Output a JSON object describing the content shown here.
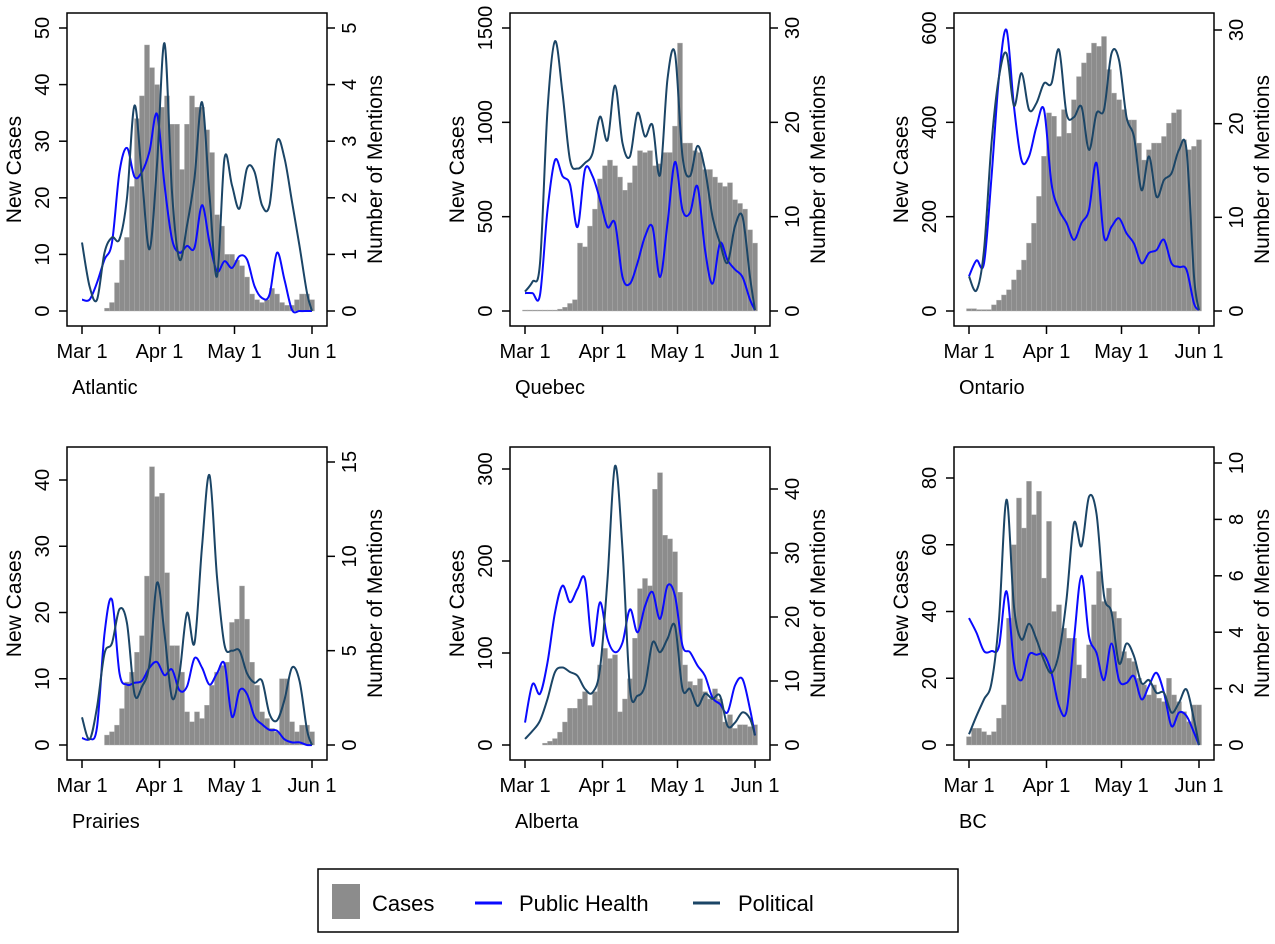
{
  "chart_data": {
    "type": "bar+line",
    "x_ticks": [
      "Mar 1",
      "Apr 1",
      "May 1",
      "Jun 1"
    ],
    "xlim": [
      "Mar 1",
      "Jun 1"
    ],
    "left_axis_label": "New Cases",
    "right_axis_label": "Number of Mentions",
    "grid": false,
    "legend": {
      "placement": "bottom",
      "entries": [
        "Cases",
        "Public Health",
        "Political"
      ]
    },
    "colors": {
      "cases": "#8c8c8c",
      "public_health": "#0a0aff",
      "political": "#1b4566"
    },
    "case_dates": [
      "Mar 1",
      "Mar 3",
      "Mar 5",
      "Mar 7",
      "Mar 9",
      "Mar 11",
      "Mar 13",
      "Mar 15",
      "Mar 17",
      "Mar 19",
      "Mar 21",
      "Mar 23",
      "Mar 25",
      "Mar 27",
      "Mar 29",
      "Mar 31",
      "Apr 2",
      "Apr 4",
      "Apr 6",
      "Apr 8",
      "Apr 10",
      "Apr 12",
      "Apr 14",
      "Apr 16",
      "Apr 18",
      "Apr 20",
      "Apr 22",
      "Apr 24",
      "Apr 26",
      "Apr 28",
      "Apr 30",
      "May 2",
      "May 4",
      "May 6",
      "May 8",
      "May 10",
      "May 12",
      "May 14",
      "May 16",
      "May 18",
      "May 20",
      "May 22",
      "May 24",
      "May 26",
      "May 28",
      "May 30",
      "Jun 1"
    ],
    "mention_dates": [
      "Mar 1",
      "Mar 4",
      "Mar 7",
      "Mar 10",
      "Mar 13",
      "Mar 16",
      "Mar 19",
      "Mar 22",
      "Mar 25",
      "Mar 28",
      "Mar 31",
      "Apr 3",
      "Apr 6",
      "Apr 9",
      "Apr 12",
      "Apr 15",
      "Apr 18",
      "Apr 21",
      "Apr 24",
      "Apr 27",
      "Apr 30",
      "May 3",
      "May 6",
      "May 9",
      "May 12",
      "May 15",
      "May 18",
      "May 21",
      "May 24",
      "May 27",
      "May 30",
      "Jun 1"
    ],
    "panels": [
      {
        "region": "Atlantic",
        "left_ticks": [
          0,
          10,
          20,
          30,
          40,
          50
        ],
        "left_ylim": [
          0,
          50
        ],
        "right_ticks": [
          0,
          1,
          2,
          3,
          4,
          5
        ],
        "right_ylim": [
          0,
          5
        ],
        "cases": [
          0,
          0,
          0,
          0,
          0,
          0.5,
          1.5,
          5,
          9,
          13,
          22,
          34,
          38,
          47,
          43,
          40,
          36,
          38,
          33,
          33,
          25,
          33,
          38,
          36,
          36,
          32,
          28,
          17,
          15,
          10,
          10,
          9,
          8,
          6,
          3,
          2,
          1.5,
          2,
          4,
          3,
          1.5,
          1,
          1,
          2,
          3,
          3,
          2
        ],
        "public_health": [
          0.2,
          0.2,
          0.5,
          0.91,
          1.21,
          2.46,
          2.88,
          2.37,
          2.46,
          2.82,
          3.48,
          2.23,
          1.27,
          1.03,
          1.15,
          1.12,
          1.87,
          1.21,
          0.7,
          0.88,
          0.76,
          0.97,
          0.91,
          0.44,
          0.23,
          0.29,
          1.03,
          0.55,
          0.02,
          0,
          0,
          0
        ],
        "political": [
          1.21,
          0.44,
          0.2,
          1.03,
          1.3,
          1.27,
          2.0,
          3.63,
          2.35,
          1.09,
          2.58,
          4.73,
          2.1,
          0.91,
          1.51,
          2.35,
          3.69,
          2.05,
          0.61,
          2.7,
          2.22,
          1.81,
          2.52,
          2.46,
          1.87,
          1.87,
          3.0,
          2.7,
          1.93,
          1.15,
          0.32,
          0
        ]
      },
      {
        "region": "Quebec",
        "left_ticks": [
          0,
          500,
          1000,
          1500
        ],
        "left_ylim": [
          0,
          1500
        ],
        "right_ticks": [
          0,
          10,
          20,
          30
        ],
        "right_ylim": [
          0,
          30
        ],
        "cases": [
          5,
          5,
          5,
          5,
          5,
          5,
          5,
          10,
          20,
          40,
          60,
          360,
          340,
          450,
          540,
          700,
          770,
          800,
          770,
          710,
          640,
          680,
          770,
          850,
          840,
          850,
          770,
          780,
          840,
          840,
          980,
          1420,
          890,
          890,
          850,
          840,
          750,
          750,
          710,
          680,
          660,
          680,
          590,
          570,
          540,
          430,
          360
        ],
        "public_health": [
          1.9,
          1.9,
          1.7,
          10.7,
          16,
          14.3,
          13.4,
          8.9,
          15,
          14.3,
          11.8,
          8.9,
          9.3,
          3.6,
          2.9,
          5.1,
          7.9,
          8.9,
          3.6,
          9.3,
          15.8,
          10.7,
          10.4,
          13.2,
          6.5,
          2.9,
          7.2,
          5.4,
          4.4,
          3.6,
          1.2,
          0.1
        ],
        "political": [
          2.05,
          3.1,
          5.06,
          21.3,
          28.6,
          23.1,
          16.0,
          15.1,
          15.7,
          16.7,
          20.6,
          18.1,
          23.9,
          17.8,
          16.4,
          21.0,
          18.5,
          19.7,
          14.4,
          24.6,
          27.3,
          16.4,
          14.3,
          17.5,
          15.0,
          10.0,
          7.2,
          5.1,
          9.0,
          10.0,
          3.6,
          0.1
        ]
      },
      {
        "region": "Ontario",
        "left_ticks": [
          0,
          200,
          400,
          600
        ],
        "left_ylim": [
          0,
          600
        ],
        "right_ticks": [
          0,
          10,
          20,
          30
        ],
        "right_ylim": [
          0,
          30
        ],
        "cases": [
          5,
          5,
          3,
          3,
          3,
          13,
          23,
          34,
          45,
          66,
          87,
          108,
          144,
          186,
          243,
          328,
          420,
          413,
          370,
          427,
          377,
          448,
          497,
          526,
          547,
          568,
          561,
          582,
          512,
          462,
          448,
          427,
          405,
          405,
          356,
          320,
          342,
          356,
          356,
          370,
          398,
          420,
          427,
          363,
          342,
          349,
          363
        ],
        "public_health": [
          3.7,
          5.4,
          5.1,
          14.3,
          25.0,
          30,
          21.8,
          16.1,
          16.5,
          19.7,
          21.5,
          13.6,
          10.8,
          9.4,
          7.6,
          9.4,
          10.8,
          15.8,
          7.9,
          9.0,
          9.9,
          8.3,
          7.2,
          5.1,
          6.2,
          6.5,
          7.6,
          5.1,
          4.7,
          4.4,
          0.8,
          0.1
        ],
        "political": [
          3.7,
          2.2,
          6.5,
          17.9,
          25.0,
          27.5,
          21.9,
          25.4,
          21.5,
          22.2,
          24.3,
          24.3,
          27.9,
          21.1,
          20.7,
          21.8,
          17.2,
          21.1,
          21.5,
          27.5,
          26.8,
          20.7,
          18.6,
          12.9,
          16.5,
          12.2,
          14.0,
          14.7,
          17.2,
          17.2,
          3.7,
          0.1
        ]
      },
      {
        "region": "Prairies",
        "left_ticks": [
          0,
          10,
          20,
          30,
          40
        ],
        "left_ylim": [
          0,
          40
        ],
        "right_ticks": [
          0,
          5,
          10,
          15
        ],
        "right_ylim": [
          0,
          15
        ],
        "cases": [
          0,
          0,
          0,
          0,
          0,
          1.5,
          2,
          3,
          5.5,
          9.5,
          11,
          14,
          16.5,
          25.5,
          42,
          37.5,
          38,
          26,
          15,
          15,
          11,
          5,
          3.5,
          5,
          4,
          6,
          9,
          11,
          12,
          12.5,
          18.5,
          19,
          24,
          19,
          12.5,
          9,
          5,
          4,
          2.5,
          2,
          10,
          10,
          3.5,
          2,
          3,
          3,
          2
        ],
        "public_health": [
          0.37,
          0.3,
          0.94,
          5.9,
          7.7,
          3.8,
          3.2,
          3.3,
          3.4,
          4.1,
          4.4,
          3.7,
          4.0,
          2.9,
          3.1,
          4.6,
          4.1,
          3.2,
          3.8,
          4.3,
          1.5,
          2.9,
          2.7,
          1.5,
          1.1,
          0.8,
          0.76,
          0.3,
          0.14,
          0.14,
          0,
          0
        ],
        "political": [
          1.47,
          0.3,
          2.0,
          4.85,
          5.4,
          7.2,
          6.45,
          2.7,
          3.1,
          4.3,
          8.6,
          5.9,
          2.5,
          3.8,
          7.0,
          5.4,
          10.5,
          14.3,
          8.9,
          5.3,
          5.0,
          5.0,
          3.8,
          3.3,
          3.4,
          1.65,
          1.3,
          2.4,
          4.1,
          3.4,
          0.8,
          0
        ]
      },
      {
        "region": "Alberta",
        "left_ticks": [
          0,
          100,
          200,
          300
        ],
        "left_ylim": [
          0,
          300
        ],
        "right_ticks": [
          0,
          10,
          20,
          30,
          40
        ],
        "right_ylim": [
          0,
          40
        ],
        "cases": [
          0,
          0,
          0,
          0,
          2,
          4,
          7,
          14,
          25,
          40,
          40,
          50,
          58,
          43,
          58,
          87,
          105,
          94,
          98,
          36,
          50,
          72,
          116,
          170,
          181,
          173,
          278,
          296,
          228,
          224,
          210,
          166,
          87,
          69,
          65,
          72,
          58,
          50,
          61,
          50,
          25,
          33,
          18,
          22,
          22,
          20,
          22
        ],
        "public_health": [
          3.5,
          9.5,
          8.0,
          12.9,
          20.7,
          24.9,
          22.3,
          24.4,
          25.9,
          15.5,
          22.3,
          16.6,
          14.5,
          16.0,
          21.2,
          17.6,
          21.7,
          23.9,
          19.7,
          24.9,
          23.3,
          15.5,
          14.5,
          12.4,
          10.8,
          7.4,
          6.4,
          5.1,
          9.3,
          10.3,
          5.6,
          1.5
        ],
        "political": [
          0.94,
          2.2,
          3.8,
          7.2,
          11.4,
          12.1,
          11.4,
          10.8,
          8.75,
          8.2,
          11.9,
          25.9,
          43.6,
          30.6,
          8.75,
          7.7,
          9.3,
          16,
          14.5,
          16.6,
          18.6,
          8.75,
          8.75,
          6.1,
          8.0,
          7.2,
          7.7,
          3.0,
          3.5,
          5.1,
          4.1,
          1.5
        ]
      },
      {
        "region": "BC",
        "left_ticks": [
          0,
          20,
          40,
          60,
          80
        ],
        "left_ylim": [
          0,
          80
        ],
        "right_ticks": [
          0,
          2,
          4,
          6,
          8,
          10
        ],
        "right_ylim": [
          0,
          10
        ],
        "cases": [
          2.5,
          5,
          5,
          4,
          3,
          4,
          8,
          12,
          38,
          60,
          74,
          65,
          79,
          69,
          76,
          50,
          67,
          40,
          42,
          35,
          32,
          32,
          24,
          20,
          30,
          42,
          52,
          43,
          47,
          40,
          38,
          28,
          26,
          25,
          20,
          18,
          15,
          18,
          14,
          13,
          20,
          15,
          13,
          10,
          7,
          12,
          12
        ],
        "public_health": [
          4.5,
          3.98,
          3.33,
          3.33,
          3.5,
          5.45,
          2.9,
          2.3,
          3.2,
          3.2,
          3.2,
          2.56,
          1.38,
          1.2,
          3.74,
          6.0,
          3.86,
          3.27,
          2.3,
          3.6,
          2.3,
          2.2,
          2.44,
          1.62,
          2.1,
          2.56,
          1.85,
          0.67,
          1.15,
          1.03,
          0.44,
          0
        ],
        "political": [
          0.38,
          1.03,
          1.62,
          2.2,
          4.45,
          8.7,
          4.9,
          3.74,
          4.3,
          3.74,
          3.0,
          2.56,
          3.27,
          5.16,
          7.87,
          7.05,
          8.8,
          8.2,
          5.3,
          4.7,
          2.9,
          3.6,
          3.15,
          2.2,
          2.3,
          1.85,
          1.85,
          1.15,
          1.5,
          1.97,
          0.9,
          0
        ]
      }
    ]
  }
}
